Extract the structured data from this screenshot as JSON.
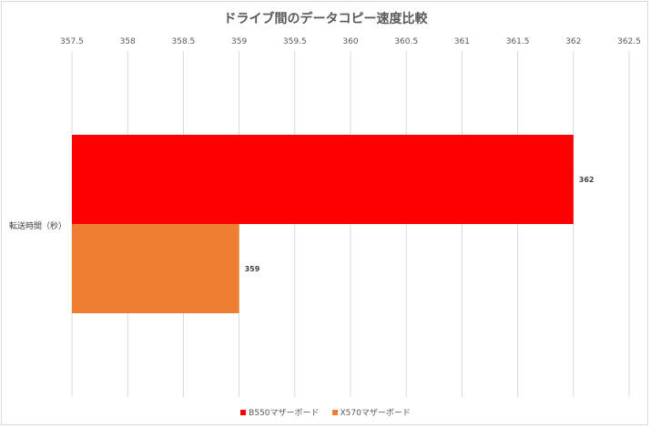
{
  "chart_data": {
    "type": "bar",
    "orientation": "horizontal",
    "title": "ドライブ間のデータコピー速度比較",
    "categories": [
      "転送時間（秒）"
    ],
    "series": [
      {
        "name": "B550マザーボード",
        "values": [
          362
        ],
        "color": "#ff0000"
      },
      {
        "name": "X570マザーボード",
        "values": [
          359
        ],
        "color": "#ed7d31"
      }
    ],
    "data_labels": [
      "362",
      "359"
    ],
    "xlim": [
      357.5,
      362.5
    ],
    "xticks": [
      "357.5",
      "358",
      "358.5",
      "359",
      "359.5",
      "360",
      "360.5",
      "361",
      "361.5",
      "362",
      "362.5"
    ],
    "x_axis_position": "top",
    "grid": true,
    "legend_position": "bottom"
  }
}
